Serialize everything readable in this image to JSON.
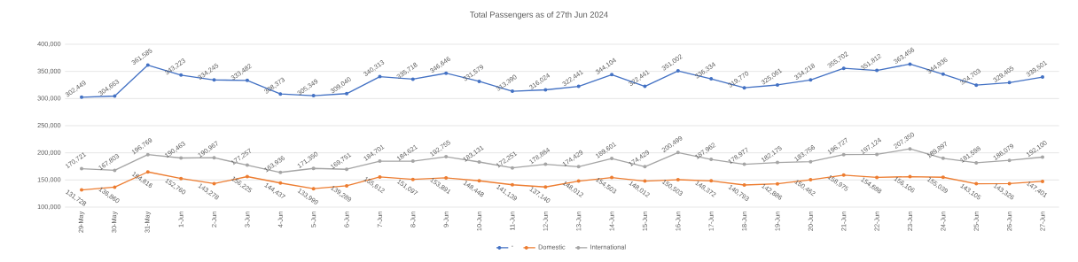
{
  "chart_data": {
    "type": "line",
    "title": "Total Passengers as of 27th Jun 2024",
    "categories": [
      "29-May",
      "30-May",
      "31-May",
      "1-Jun",
      "2-Jun",
      "3-Jun",
      "4-Jun",
      "5-Jun",
      "6-Jun",
      "7-Jun",
      "8-Jun",
      "9-Jun",
      "10-Jun",
      "11-Jun",
      "12-Jun",
      "13-Jun",
      "14-Jun",
      "15-Jun",
      "16-Jun",
      "17-Jun",
      "18-Jun",
      "19-Jun",
      "20-Jun",
      "21-Jun",
      "22-Jun",
      "23-Jun",
      "24-Jun",
      "25-Jun",
      "26-Jun",
      "27-Jun"
    ],
    "series": [
      {
        "name": "-",
        "color": "#4472c4",
        "values": [
          302449,
          304663,
          361585,
          343223,
          334245,
          333482,
          308373,
          305349,
          309040,
          340313,
          335718,
          346646,
          331579,
          313390,
          316024,
          322441,
          344104,
          322441,
          351002,
          336334,
          319770,
          325061,
          334218,
          355702,
          351812,
          363456,
          344936,
          324703,
          329405,
          339501
        ],
        "value_labels": [
          "302,449",
          "304,663",
          "361,585",
          "343,223",
          "334,245",
          "333,482",
          "308,373",
          "305,349",
          "309,040",
          "340,313",
          "335,718",
          "346,646",
          "331,579",
          "313,390",
          "316,024",
          "322,441",
          "344,104",
          "322,441",
          "351,002",
          "336,334",
          "319,770",
          "325,061",
          "334,218",
          "355,702",
          "351,812",
          "363,456",
          "344,936",
          "324,703",
          "329,405",
          "339,501"
        ]
      },
      {
        "name": "Domestic",
        "color": "#ed7d31",
        "values": [
          131728,
          136860,
          164816,
          152760,
          143278,
          156225,
          144437,
          133999,
          139289,
          155612,
          151097,
          153891,
          148448,
          141139,
          137140,
          148012,
          154503,
          148012,
          150503,
          148372,
          140793,
          142886,
          150462,
          158975,
          154688,
          156106,
          155039,
          143105,
          143326,
          147401
        ],
        "value_labels": [
          "131,728",
          "136,860",
          "164,816",
          "152,760",
          "143,278",
          "156,225",
          "144,437",
          "133,999",
          "139,289",
          "155,612",
          "151,097",
          "153,891",
          "148,448",
          "141,139",
          "137,140",
          "148,012",
          "154,503",
          "148,012",
          "150,503",
          "148,372",
          "140,793",
          "142,886",
          "150,462",
          "158,975",
          "154,688",
          "156,106",
          "155,039",
          "143,105",
          "143,326",
          "147,401"
        ]
      },
      {
        "name": "International",
        "color": "#a5a5a5",
        "values": [
          170721,
          167803,
          196769,
          190463,
          190967,
          177257,
          163936,
          171350,
          169751,
          184701,
          184621,
          192755,
          183131,
          172251,
          178884,
          174429,
          189601,
          174429,
          200499,
          187962,
          178977,
          182175,
          183756,
          196727,
          197124,
          207350,
          189897,
          181598,
          186079,
          192100
        ],
        "value_labels": [
          "170,721",
          "167,803",
          "196,769",
          "190,463",
          "190,967",
          "177,257",
          "163,936",
          "171,350",
          "169,751",
          "184,701",
          "184,621",
          "192,755",
          "183,131",
          "172,251",
          "178,884",
          "174,429",
          "189,601",
          "174,429",
          "200,499",
          "187,962",
          "178,977",
          "182,175",
          "183,756",
          "196,727",
          "197,124",
          "207,350",
          "189,897",
          "181,598",
          "186,079",
          "192,100"
        ]
      }
    ],
    "ylim": [
      100000,
      400000
    ],
    "yticks": [
      {
        "value": 100000,
        "label": "100,000"
      },
      {
        "value": 150000,
        "label": "150,000"
      },
      {
        "value": 200000,
        "label": "200,000"
      },
      {
        "value": 250000,
        "label": "250,000"
      },
      {
        "value": 300000,
        "label": "300,000"
      },
      {
        "value": 350000,
        "label": "350,000"
      },
      {
        "value": 400000,
        "label": "400,000"
      }
    ],
    "grid": "y",
    "legend": "bottom",
    "marker": "circle",
    "line_style": "solid"
  }
}
